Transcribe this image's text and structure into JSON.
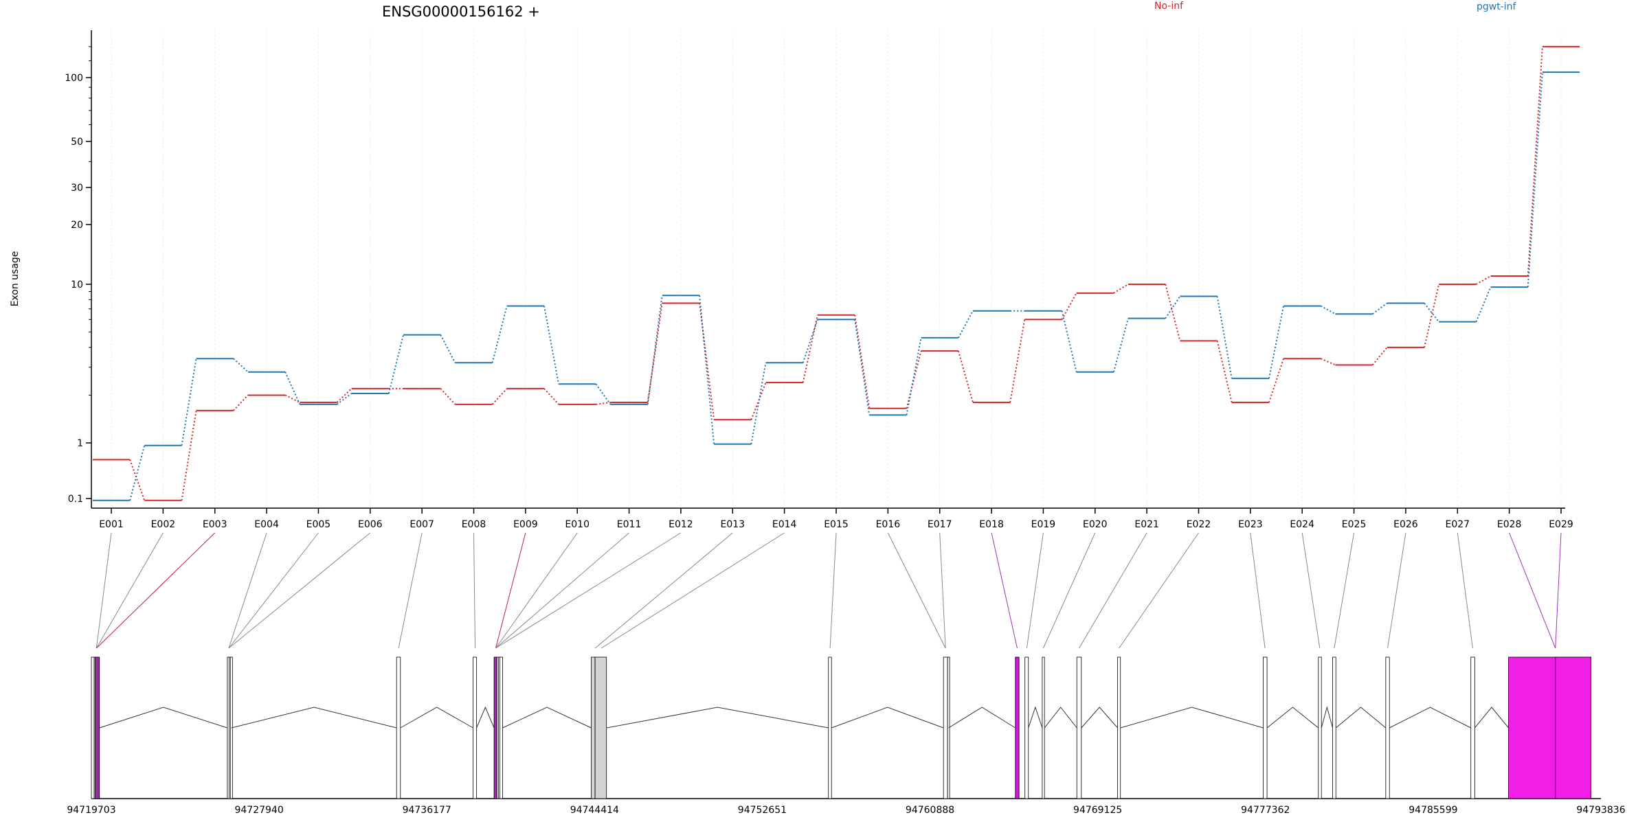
{
  "chart_data": {
    "type": "line",
    "title": "ENSG00000156162 +",
    "ylabel": "Exon usage",
    "xlabel": "",
    "y_scale": "log-like",
    "y_ticks": [
      0.1,
      1,
      10,
      20,
      30,
      50,
      100
    ],
    "y_tick_labels": [
      "0.1",
      "1",
      "10",
      "20",
      "30",
      "50",
      "100"
    ],
    "categories": [
      "E001",
      "E002",
      "E003",
      "E004",
      "E005",
      "E006",
      "E007",
      "E008",
      "E009",
      "E010",
      "E011",
      "E012",
      "E013",
      "E014",
      "E015",
      "E016",
      "E017",
      "E018",
      "E019",
      "E020",
      "E021",
      "E022",
      "E023",
      "E024",
      "E025",
      "E026",
      "E027",
      "E028",
      "E029"
    ],
    "series": [
      {
        "name": "No-inf",
        "color": "#d62728",
        "values": [
          0.5,
          0.07,
          1.6,
          2.0,
          1.8,
          2.2,
          2.2,
          1.75,
          2.2,
          1.75,
          1.8,
          7.6,
          1.4,
          2.4,
          6.4,
          1.65,
          3.8,
          1.8,
          6.0,
          8.8,
          10.0,
          4.4,
          1.8,
          3.4,
          3.1,
          4.0,
          10.0,
          11.0,
          140.0
        ]
      },
      {
        "name": "pgwt-inf",
        "color": "#1f77b4",
        "values": [
          0.07,
          0.9,
          3.4,
          2.8,
          1.75,
          2.05,
          4.8,
          3.2,
          7.3,
          2.35,
          1.75,
          8.5,
          0.95,
          3.2,
          6.0,
          1.5,
          4.6,
          6.8,
          6.8,
          2.8,
          6.1,
          8.4,
          2.55,
          7.3,
          6.5,
          7.6,
          5.8,
          9.6,
          106.0
        ]
      }
    ],
    "grid": true,
    "legend": [
      "No-inf",
      "pgwt-inf"
    ],
    "gene_model": {
      "coordinate_labels": [
        "94719703",
        "94727940",
        "94736177",
        "94744414",
        "94752651",
        "94760888",
        "94769125",
        "94777362",
        "94785599",
        "94793836"
      ],
      "coord_min": 94719703,
      "coord_max": 94793836,
      "exons": [
        {
          "id": "E001",
          "start": 94719703,
          "end": 94719840,
          "fill": "#ffffff",
          "model_anchor": 94719950
        },
        {
          "id": "E002",
          "start": 94719840,
          "end": 94719890,
          "fill": "#ffffff",
          "model_anchor": 94719950
        },
        {
          "id": "E003",
          "start": 94719890,
          "end": 94720100,
          "fill": "#9b2ea3",
          "model_anchor": 94719950
        },
        {
          "id": "E004",
          "start": 94726380,
          "end": 94726470,
          "fill": "#ffffff",
          "model_anchor": 94726450
        },
        {
          "id": "E005",
          "start": 94726470,
          "end": 94726530,
          "fill": "#ffffff",
          "model_anchor": 94726450
        },
        {
          "id": "E006",
          "start": 94726530,
          "end": 94726580,
          "fill": "#ffffff",
          "model_anchor": 94726450
        },
        {
          "id": "E007",
          "start": 94734690,
          "end": 94734880,
          "fill": "#ffffff",
          "model_anchor": 94734790
        },
        {
          "id": "E008",
          "start": 94738450,
          "end": 94738620,
          "fill": "#ffffff",
          "model_anchor": 94738550
        },
        {
          "id": "E009",
          "start": 94739480,
          "end": 94739620,
          "fill": "#9b2ea3",
          "model_anchor": 94739560
        },
        {
          "id": "E010",
          "start": 94739620,
          "end": 94739700,
          "fill": "#ffffff",
          "model_anchor": 94739560
        },
        {
          "id": "E011",
          "start": 94739700,
          "end": 94739760,
          "fill": "#ffffff",
          "model_anchor": 94739560
        },
        {
          "id": "E012",
          "start": 94739760,
          "end": 94739900,
          "fill": "#ffffff",
          "model_anchor": 94739560
        },
        {
          "id": "E013",
          "start": 94744250,
          "end": 94744440,
          "fill": "#d3d3d3",
          "model_anchor": 94744440
        },
        {
          "id": "E014",
          "start": 94744440,
          "end": 94745000,
          "fill": "#d3d3d3",
          "model_anchor": 94744740
        },
        {
          "id": "E015",
          "start": 94755900,
          "end": 94756050,
          "fill": "#ffffff",
          "model_anchor": 94755980
        },
        {
          "id": "E016",
          "start": 94761550,
          "end": 94761750,
          "fill": "#ffffff",
          "model_anchor": 94761650
        },
        {
          "id": "E017",
          "start": 94761750,
          "end": 94761800,
          "fill": "#ffffff",
          "model_anchor": 94761650
        },
        {
          "id": "E018",
          "start": 94765080,
          "end": 94765260,
          "fill": "#cc1ad6",
          "model_anchor": 94765170
        },
        {
          "id": "E019",
          "start": 94765550,
          "end": 94765720,
          "fill": "#ffffff",
          "model_anchor": 94765640
        },
        {
          "id": "E020",
          "start": 94766400,
          "end": 94766510,
          "fill": "#ffffff",
          "model_anchor": 94766450
        },
        {
          "id": "E021",
          "start": 94768100,
          "end": 94768320,
          "fill": "#ffffff",
          "model_anchor": 94768210
        },
        {
          "id": "E022",
          "start": 94770100,
          "end": 94770240,
          "fill": "#ffffff",
          "model_anchor": 94770170
        },
        {
          "id": "E023",
          "start": 94777250,
          "end": 94777440,
          "fill": "#ffffff",
          "model_anchor": 94777340
        },
        {
          "id": "E024",
          "start": 94779960,
          "end": 94780110,
          "fill": "#ffffff",
          "model_anchor": 94780030
        },
        {
          "id": "E025",
          "start": 94780660,
          "end": 94780820,
          "fill": "#ffffff",
          "model_anchor": 94780740
        },
        {
          "id": "E026",
          "start": 94783270,
          "end": 94783450,
          "fill": "#ffffff",
          "model_anchor": 94783360
        },
        {
          "id": "E027",
          "start": 94787450,
          "end": 94787640,
          "fill": "#ffffff",
          "model_anchor": 94787540
        },
        {
          "id": "E028",
          "start": 94789300,
          "end": 94793350,
          "fill": "#f01ee6",
          "model_anchor": 94791600
        },
        {
          "id": "E029",
          "start": 94791600,
          "end": 94793350,
          "fill": "#f01ee6",
          "model_anchor": 94791600
        }
      ]
    }
  },
  "legend": {
    "series1_label": "No-inf",
    "series2_label": "pgwt-inf"
  }
}
